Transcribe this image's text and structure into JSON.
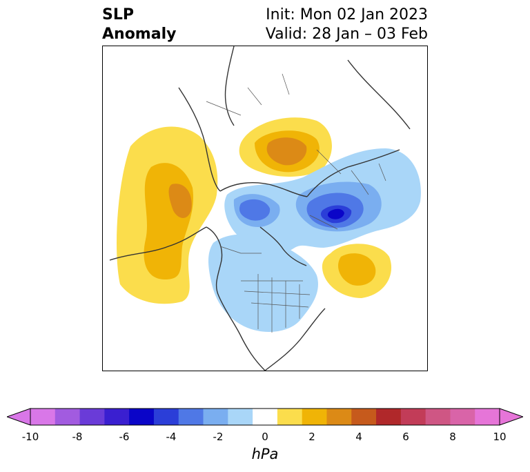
{
  "title": {
    "left_line1": "SLP",
    "left_line2": "Anomaly",
    "init": "Init: Mon 02 Jan 2023",
    "valid": "Valid: 28 Jan – 03 Feb"
  },
  "colorbar": {
    "label": "hPa",
    "ticks": [
      "-10",
      "-8",
      "-6",
      "-4",
      "-2",
      "0",
      "2",
      "4",
      "6",
      "8",
      "10"
    ],
    "colors": [
      "#d977e8",
      "#a25be0",
      "#6a3bd8",
      "#3a1fd0",
      "#0a05c8",
      "#2b3ed8",
      "#4f78e6",
      "#7aaef0",
      "#a9d6f8",
      "#ffffff",
      "#fbdd4c",
      "#f0b406",
      "#dc8a16",
      "#c65a1c",
      "#b0282a",
      "#c23c58",
      "#cf5684",
      "#d964a8",
      "#e675d8"
    ],
    "min_arrow_color": "#d977e8",
    "max_arrow_color": "#e675d8"
  },
  "map": {
    "projection": "north-polar-stereographic",
    "region": "Northern Hemisphere (North America centered)"
  }
}
